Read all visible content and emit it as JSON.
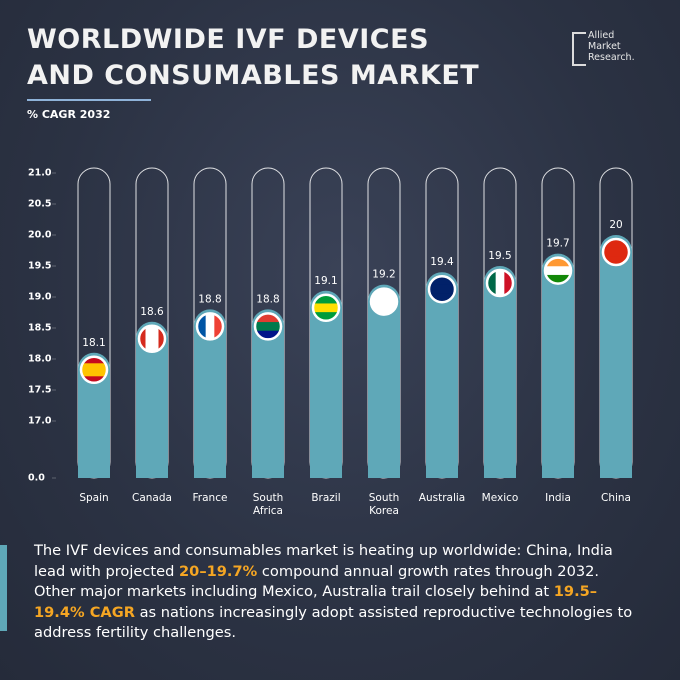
{
  "title_lines": [
    "WORLDWIDE IVF DEVICES",
    "AND CONSUMABLES MARKET"
  ],
  "subtitle": "% CAGR 2032",
  "logo_lines": [
    "Allied",
    "Market",
    "Research."
  ],
  "chart_data": {
    "type": "bar",
    "categories": [
      "Spain",
      "Canada",
      "France",
      "South Africa",
      "Brazil",
      "South Korea",
      "Australia",
      "Mexico",
      "India",
      "China"
    ],
    "values": [
      18.1,
      18.6,
      18.8,
      18.8,
      19.1,
      19.2,
      19.4,
      19.5,
      19.7,
      20
    ],
    "color": "#5fa8b8",
    "ylim": [
      0,
      21
    ],
    "yticks": [
      {
        "value": 21,
        "label": "21.0"
      },
      {
        "value": 20.5,
        "label": "20.5"
      },
      {
        "value": 20,
        "label": "20.0"
      },
      {
        "value": 19.5,
        "label": "19.5"
      },
      {
        "value": 19,
        "label": "19.0"
      },
      {
        "value": 18.5,
        "label": "18.5"
      },
      {
        "value": 18,
        "label": "18.0"
      },
      {
        "value": 17.5,
        "label": "17.5"
      },
      {
        "value": 17,
        "label": "17.0"
      },
      {
        "value": 0,
        "label": "0.0"
      }
    ],
    "grid": false
  },
  "description": [
    {
      "text": "The IVF devices and consumables market is heating up worldwide: China, India lead with projected ",
      "highlight": false
    },
    {
      "text": "20–19.7%",
      "highlight": true
    },
    {
      "text": " compound annual growth rates through 2032. Other major markets including Mexico, Australia trail closely behind at ",
      "highlight": false
    },
    {
      "text": "19.5–19.4% CAGR",
      "highlight": true
    },
    {
      "text": " as nations increasingly adopt assisted reproductive technologies to address fertility challenges.",
      "highlight": false
    }
  ]
}
